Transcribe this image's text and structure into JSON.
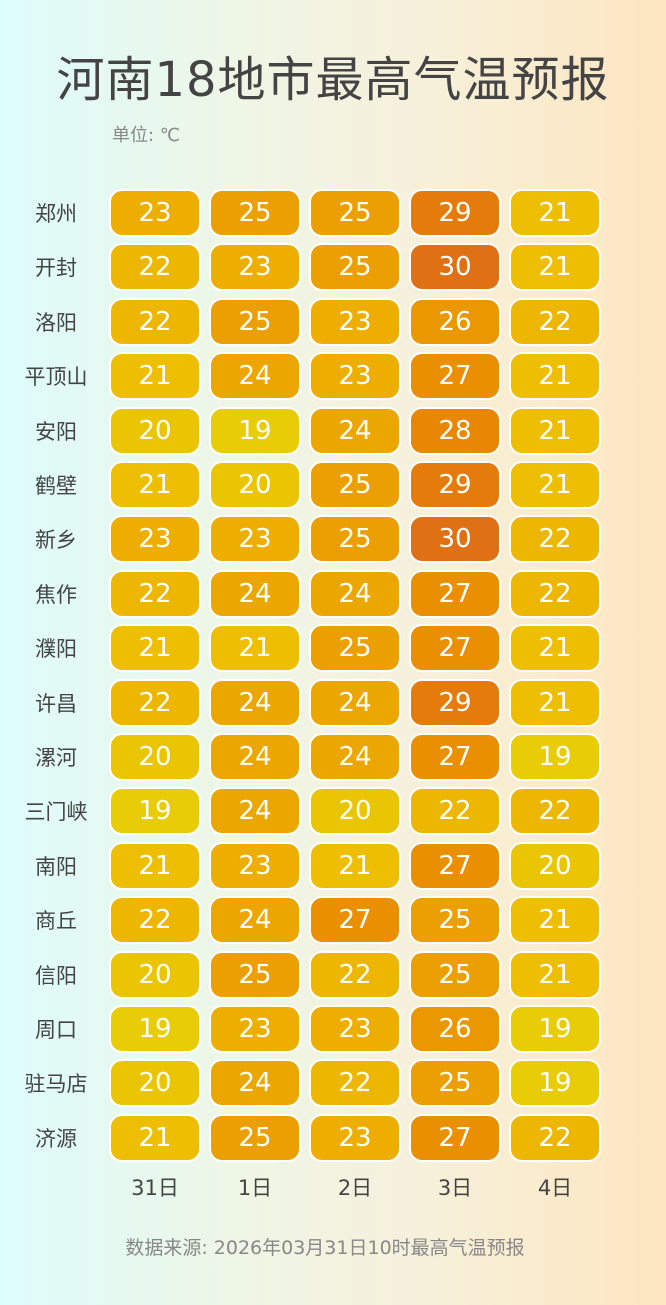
{
  "chart_data": {
    "type": "heatmap",
    "title": "河南18地市最高气温预报",
    "unit_label": "单位: ℃",
    "columns": [
      "31日",
      "1日",
      "2日",
      "3日",
      "4日"
    ],
    "rows": [
      "郑州",
      "开封",
      "洛阳",
      "平顶山",
      "安阳",
      "鹤壁",
      "新乡",
      "焦作",
      "濮阳",
      "许昌",
      "漯河",
      "三门峡",
      "南阳",
      "商丘",
      "信阳",
      "周口",
      "驻马店",
      "济源"
    ],
    "values": [
      [
        23,
        25,
        25,
        29,
        21
      ],
      [
        22,
        23,
        25,
        30,
        21
      ],
      [
        22,
        25,
        23,
        26,
        22
      ],
      [
        21,
        24,
        23,
        27,
        21
      ],
      [
        20,
        19,
        24,
        28,
        21
      ],
      [
        21,
        20,
        25,
        29,
        21
      ],
      [
        23,
        23,
        25,
        30,
        22
      ],
      [
        22,
        24,
        24,
        27,
        22
      ],
      [
        21,
        21,
        25,
        27,
        21
      ],
      [
        22,
        24,
        24,
        29,
        21
      ],
      [
        20,
        24,
        24,
        27,
        19
      ],
      [
        19,
        24,
        20,
        22,
        22
      ],
      [
        21,
        23,
        21,
        27,
        20
      ],
      [
        22,
        24,
        27,
        25,
        21
      ],
      [
        20,
        25,
        22,
        25,
        21
      ],
      [
        19,
        23,
        23,
        26,
        19
      ],
      [
        20,
        24,
        22,
        25,
        19
      ],
      [
        21,
        25,
        23,
        27,
        22
      ]
    ],
    "color_scale": {
      "min": 19,
      "max": 30,
      "colors": [
        "#e8cc06",
        "#edbd00",
        "#edab00",
        "#eb9a00",
        "#ea8800",
        "#e07014"
      ]
    },
    "source": "数据来源: 2026年03月31日10时最高气温预报"
  }
}
